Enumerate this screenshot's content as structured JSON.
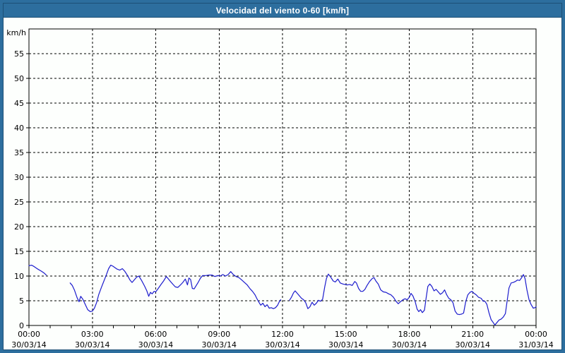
{
  "window": {
    "title": "Velocidad del viento 0-60 [km/h]"
  },
  "colors": {
    "titlebar": "#2d6e9e",
    "frame_line": "#1d5076",
    "plot_background": "#fdfffd",
    "plot_border": "#000000",
    "grid": "#000000",
    "tick": "#000000",
    "label_text": "#000000",
    "title_text": "#ffffff",
    "line": "#1c1ccd"
  },
  "chart_data": {
    "type": "line",
    "title": "Velocidad del viento 0-60 [km/h]",
    "ylabel": "km/h",
    "xlabel": "",
    "ylim": [
      0,
      60
    ],
    "xlim_hours": [
      0,
      24
    ],
    "grid": "dashed, every 5 km/h horizontal, every 3 h vertical",
    "legend_position": "none",
    "y_tick_step": 5,
    "y_tick_labels": [
      "0",
      "5",
      "10",
      "15",
      "20",
      "25",
      "30",
      "35",
      "40",
      "45",
      "50",
      "55"
    ],
    "x_minor_tick_hours": 1,
    "x_ticks": [
      {
        "hour": 0,
        "time": "00:00",
        "date": "30/03/14"
      },
      {
        "hour": 3,
        "time": "03:00",
        "date": "30/03/14"
      },
      {
        "hour": 6,
        "time": "06:00",
        "date": "30/03/14"
      },
      {
        "hour": 9,
        "time": "09:00",
        "date": "30/03/14"
      },
      {
        "hour": 12,
        "time": "12:00",
        "date": "30/03/14"
      },
      {
        "hour": 15,
        "time": "15:00",
        "date": "30/03/14"
      },
      {
        "hour": 18,
        "time": "18:00",
        "date": "30/03/14"
      },
      {
        "hour": 21,
        "time": "21:00",
        "date": "30/03/14"
      },
      {
        "hour": 24,
        "time": "00:00",
        "date": "31/03/14"
      }
    ],
    "series": [
      {
        "name": "Velocidad del viento",
        "units": "km/h",
        "note": "time in decimal hours; data gaps 00:50-01:57 and 11:55-12:20",
        "segments": [
          [
            [
              0,
              12.1
            ],
            [
              0.13,
              12.2
            ],
            [
              0.25,
              11.9
            ],
            [
              0.42,
              11.4
            ],
            [
              0.58,
              11.0
            ],
            [
              0.72,
              10.6
            ],
            [
              0.82,
              10.2
            ]
          ],
          [
            [
              1.95,
              8.6
            ],
            [
              2.05,
              8.1
            ],
            [
              2.15,
              7.2
            ],
            [
              2.28,
              5.6
            ],
            [
              2.37,
              4.8
            ],
            [
              2.45,
              5.9
            ],
            [
              2.55,
              5.3
            ],
            [
              2.67,
              4.2
            ],
            [
              2.78,
              3.2
            ],
            [
              2.9,
              2.8
            ],
            [
              3.0,
              2.9
            ],
            [
              3.1,
              3.5
            ],
            [
              3.2,
              4.6
            ],
            [
              3.3,
              6.2
            ],
            [
              3.42,
              7.6
            ],
            [
              3.53,
              8.8
            ],
            [
              3.65,
              10.1
            ],
            [
              3.77,
              11.5
            ],
            [
              3.87,
              12.2
            ],
            [
              3.97,
              12.0
            ],
            [
              4.07,
              11.7
            ],
            [
              4.17,
              11.4
            ],
            [
              4.3,
              11.2
            ],
            [
              4.42,
              11.5
            ],
            [
              4.53,
              11.0
            ],
            [
              4.65,
              10.2
            ],
            [
              4.78,
              9.2
            ],
            [
              4.88,
              8.7
            ],
            [
              5.0,
              9.3
            ],
            [
              5.1,
              9.8
            ],
            [
              5.2,
              10.0
            ],
            [
              5.33,
              9.1
            ],
            [
              5.47,
              8.0
            ],
            [
              5.58,
              7.0
            ],
            [
              5.67,
              5.9
            ],
            [
              5.75,
              6.7
            ],
            [
              5.83,
              6.4
            ],
            [
              5.92,
              6.9
            ],
            [
              6.0,
              6.8
            ],
            [
              6.12,
              7.5
            ],
            [
              6.25,
              8.3
            ],
            [
              6.37,
              9.0
            ],
            [
              6.5,
              9.9
            ],
            [
              6.58,
              9.5
            ],
            [
              6.7,
              8.9
            ],
            [
              6.82,
              8.3
            ],
            [
              6.93,
              7.8
            ],
            [
              7.05,
              7.7
            ],
            [
              7.17,
              8.2
            ],
            [
              7.28,
              8.7
            ],
            [
              7.4,
              9.4
            ],
            [
              7.5,
              8.2
            ],
            [
              7.57,
              9.6
            ],
            [
              7.65,
              9.3
            ],
            [
              7.73,
              7.5
            ],
            [
              7.82,
              7.4
            ],
            [
              7.92,
              8.1
            ],
            [
              8.02,
              8.8
            ],
            [
              8.12,
              9.6
            ],
            [
              8.22,
              10.1
            ],
            [
              8.37,
              10.1
            ],
            [
              8.52,
              10.2
            ],
            [
              8.67,
              10.2
            ],
            [
              8.8,
              9.9
            ],
            [
              8.93,
              10.1
            ],
            [
              9.05,
              10.0
            ],
            [
              9.18,
              10.3
            ],
            [
              9.3,
              10.0
            ],
            [
              9.43,
              10.3
            ],
            [
              9.55,
              10.9
            ],
            [
              9.67,
              10.3
            ],
            [
              9.8,
              9.9
            ],
            [
              9.93,
              9.7
            ],
            [
              10.07,
              9.2
            ],
            [
              10.2,
              8.7
            ],
            [
              10.33,
              8.2
            ],
            [
              10.47,
              7.4
            ],
            [
              10.58,
              6.9
            ],
            [
              10.7,
              6.2
            ],
            [
              10.78,
              5.5
            ],
            [
              10.87,
              4.8
            ],
            [
              10.97,
              4.1
            ],
            [
              11.07,
              4.5
            ],
            [
              11.17,
              3.8
            ],
            [
              11.27,
              4.2
            ],
            [
              11.37,
              3.5
            ],
            [
              11.47,
              3.6
            ],
            [
              11.57,
              3.4
            ],
            [
              11.67,
              3.6
            ],
            [
              11.77,
              4.1
            ],
            [
              11.87,
              5.0
            ],
            [
              11.92,
              5.2
            ]
          ],
          [
            [
              12.33,
              5.1
            ],
            [
              12.42,
              5.7
            ],
            [
              12.52,
              6.6
            ],
            [
              12.6,
              7.0
            ],
            [
              12.7,
              6.5
            ],
            [
              12.8,
              6.0
            ],
            [
              12.9,
              5.5
            ],
            [
              13.0,
              5.2
            ],
            [
              13.1,
              4.6
            ],
            [
              13.2,
              3.4
            ],
            [
              13.3,
              3.8
            ],
            [
              13.4,
              4.7
            ],
            [
              13.5,
              4.1
            ],
            [
              13.6,
              4.5
            ],
            [
              13.7,
              5.1
            ],
            [
              13.8,
              4.9
            ],
            [
              13.9,
              5.3
            ],
            [
              14.0,
              7.8
            ],
            [
              14.08,
              9.5
            ],
            [
              14.17,
              10.4
            ],
            [
              14.28,
              9.8
            ],
            [
              14.4,
              9.0
            ],
            [
              14.5,
              8.8
            ],
            [
              14.62,
              9.4
            ],
            [
              14.73,
              8.6
            ],
            [
              14.85,
              8.4
            ],
            [
              14.95,
              8.3
            ],
            [
              15.07,
              8.2
            ],
            [
              15.18,
              8.3
            ],
            [
              15.3,
              8.1
            ],
            [
              15.42,
              8.9
            ],
            [
              15.5,
              8.6
            ],
            [
              15.6,
              7.5
            ],
            [
              15.7,
              6.9
            ],
            [
              15.8,
              6.9
            ],
            [
              15.9,
              7.3
            ],
            [
              16.0,
              8.1
            ],
            [
              16.12,
              8.9
            ],
            [
              16.25,
              9.5
            ],
            [
              16.33,
              9.7
            ],
            [
              16.42,
              9.0
            ],
            [
              16.53,
              8.4
            ],
            [
              16.65,
              7.2
            ],
            [
              16.77,
              6.8
            ],
            [
              16.9,
              6.7
            ],
            [
              17.02,
              6.4
            ],
            [
              17.13,
              6.2
            ],
            [
              17.25,
              5.7
            ],
            [
              17.37,
              4.9
            ],
            [
              17.48,
              4.4
            ],
            [
              17.58,
              4.8
            ],
            [
              17.7,
              5.2
            ],
            [
              17.8,
              5.4
            ],
            [
              17.9,
              5.2
            ],
            [
              18.0,
              5.7
            ],
            [
              18.08,
              6.5
            ],
            [
              18.17,
              6.0
            ],
            [
              18.28,
              4.8
            ],
            [
              18.37,
              3.3
            ],
            [
              18.45,
              2.8
            ],
            [
              18.53,
              3.2
            ],
            [
              18.62,
              2.6
            ],
            [
              18.72,
              3.1
            ],
            [
              18.8,
              5.6
            ],
            [
              18.88,
              7.9
            ],
            [
              18.97,
              8.4
            ],
            [
              19.07,
              7.9
            ],
            [
              19.17,
              7.0
            ],
            [
              19.27,
              7.3
            ],
            [
              19.37,
              6.8
            ],
            [
              19.47,
              6.3
            ],
            [
              19.57,
              6.6
            ],
            [
              19.67,
              7.2
            ],
            [
              19.77,
              6.2
            ],
            [
              19.87,
              5.5
            ],
            [
              19.97,
              5.2
            ],
            [
              20.07,
              4.6
            ],
            [
              20.17,
              2.9
            ],
            [
              20.27,
              2.3
            ],
            [
              20.37,
              2.2
            ],
            [
              20.47,
              2.3
            ],
            [
              20.57,
              2.5
            ],
            [
              20.67,
              4.8
            ],
            [
              20.77,
              6.2
            ],
            [
              20.87,
              6.7
            ],
            [
              20.97,
              6.9
            ],
            [
              21.07,
              6.5
            ],
            [
              21.17,
              6.2
            ],
            [
              21.28,
              5.7
            ],
            [
              21.4,
              5.5
            ],
            [
              21.5,
              4.9
            ],
            [
              21.58,
              4.9
            ],
            [
              21.67,
              4.3
            ],
            [
              21.77,
              2.6
            ],
            [
              21.87,
              1.2
            ],
            [
              21.97,
              0.6
            ],
            [
              22.05,
              0.1
            ],
            [
              22.15,
              0.6
            ],
            [
              22.25,
              1.1
            ],
            [
              22.35,
              1.3
            ],
            [
              22.45,
              1.7
            ],
            [
              22.55,
              2.4
            ],
            [
              22.63,
              4.9
            ],
            [
              22.72,
              7.6
            ],
            [
              22.82,
              8.6
            ],
            [
              22.92,
              8.7
            ],
            [
              23.02,
              8.9
            ],
            [
              23.12,
              9.2
            ],
            [
              23.22,
              9.1
            ],
            [
              23.32,
              9.7
            ],
            [
              23.4,
              10.3
            ],
            [
              23.48,
              9.5
            ],
            [
              23.57,
              7.2
            ],
            [
              23.67,
              5.2
            ],
            [
              23.77,
              4.2
            ],
            [
              23.87,
              3.5
            ],
            [
              23.95,
              3.6
            ],
            [
              24.0,
              3.8
            ]
          ]
        ]
      }
    ]
  }
}
